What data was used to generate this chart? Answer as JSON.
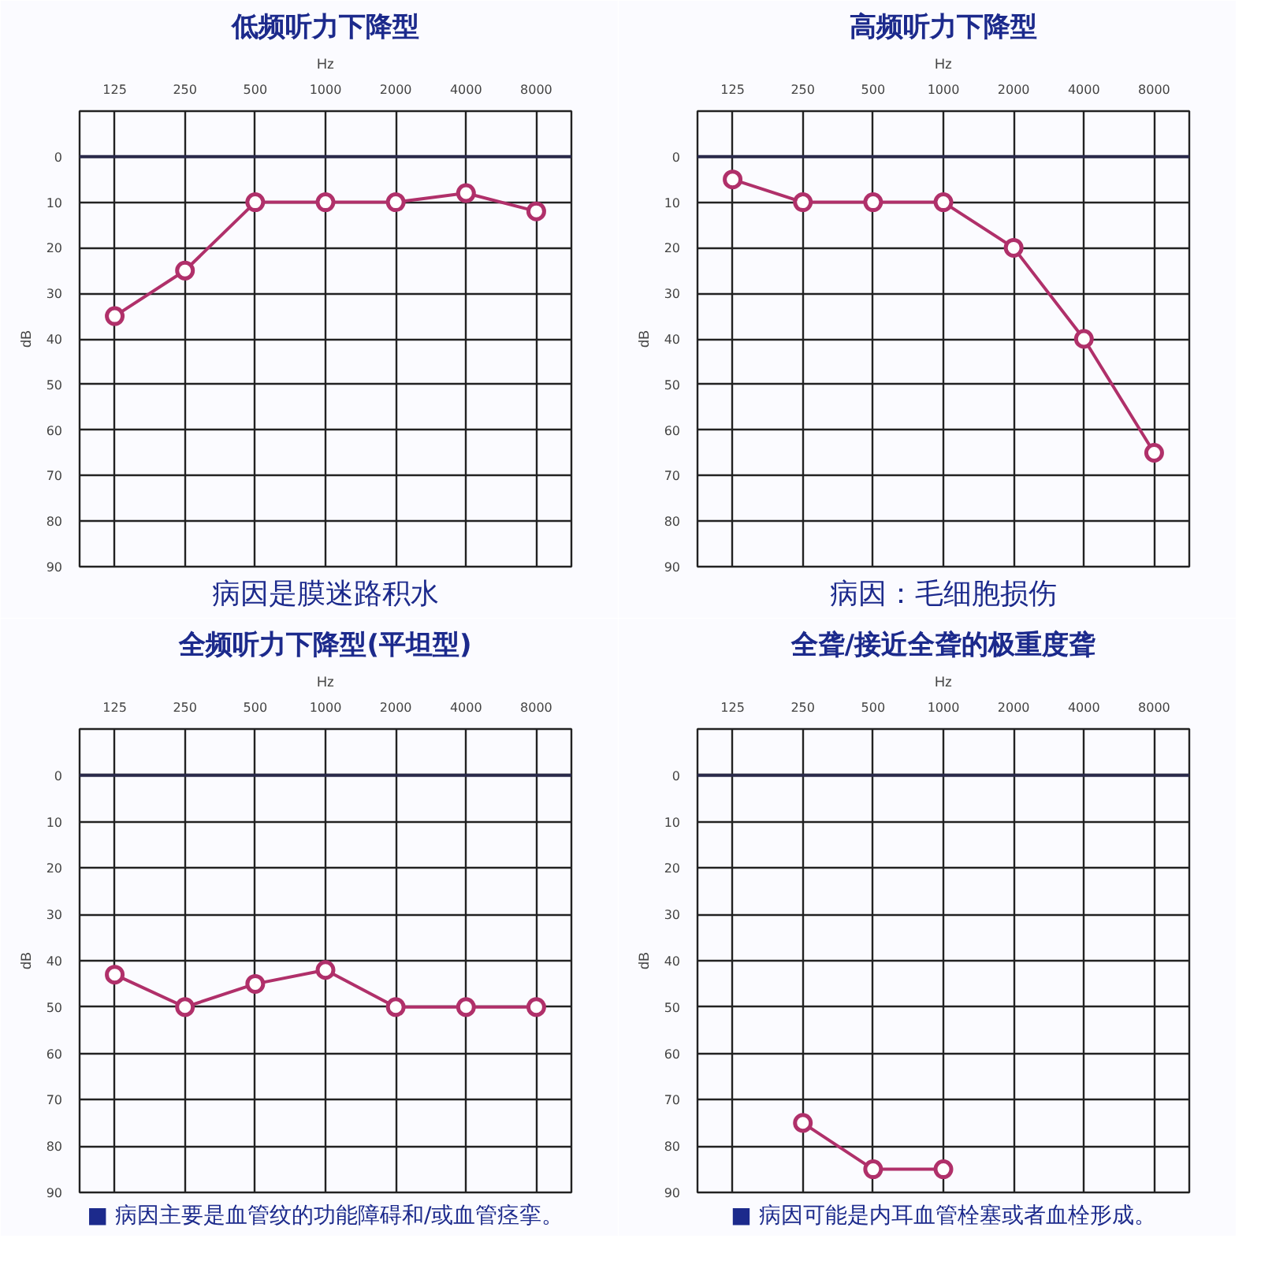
{
  "chart_data": [
    {
      "type": "line",
      "title": "低频听力下降型",
      "categories": [
        "125",
        "250",
        "500",
        "1000",
        "2000",
        "4000",
        "8000"
      ],
      "xlabel": "Hz",
      "ylabel": "dB",
      "ylim": [
        90,
        -10
      ],
      "yticks": [
        0,
        10,
        20,
        30,
        40,
        50,
        60,
        70,
        80,
        90
      ],
      "grid": true,
      "marker": "circle",
      "ref_lines": [
        {
          "axis": "y",
          "value": 0,
          "color": "#2a2a4a"
        }
      ],
      "series": [
        {
          "color": "#b0306a",
          "values": [
            35,
            25,
            10,
            10,
            10,
            8,
            12
          ]
        }
      ],
      "annotations": [
        "病因是膜迷路积水"
      ]
    },
    {
      "type": "line",
      "title": "高频听力下降型",
      "categories": [
        "125",
        "250",
        "500",
        "1000",
        "2000",
        "4000",
        "8000"
      ],
      "xlabel": "Hz",
      "ylabel": "dB",
      "ylim": [
        90,
        -10
      ],
      "yticks": [
        0,
        10,
        20,
        30,
        40,
        50,
        60,
        70,
        80,
        90
      ],
      "grid": true,
      "marker": "circle",
      "ref_lines": [
        {
          "axis": "y",
          "value": 0,
          "color": "#2a2a4a"
        }
      ],
      "series": [
        {
          "color": "#b0306a",
          "values": [
            5,
            10,
            10,
            10,
            20,
            40,
            65
          ]
        }
      ],
      "annotations": [
        "病因：毛细胞损伤"
      ]
    },
    {
      "type": "line",
      "title": "全频听力下降型(平坦型)",
      "categories": [
        "125",
        "250",
        "500",
        "1000",
        "2000",
        "4000",
        "8000"
      ],
      "xlabel": "Hz",
      "ylabel": "dB",
      "ylim": [
        90,
        -10
      ],
      "yticks": [
        0,
        10,
        20,
        30,
        40,
        50,
        60,
        70,
        80,
        90
      ],
      "grid": true,
      "marker": "circle",
      "ref_lines": [
        {
          "axis": "y",
          "value": 0,
          "color": "#2a2a4a"
        }
      ],
      "series": [
        {
          "color": "#b0306a",
          "values": [
            43,
            50,
            45,
            42,
            50,
            50,
            50
          ]
        }
      ],
      "annotations": [
        "■ 病因主要是血管纹的功能障碍和/或血管痉挛。"
      ]
    },
    {
      "type": "line",
      "title": "全聋/接近全聋的极重度聋",
      "categories": [
        "125",
        "250",
        "500",
        "1000",
        "2000",
        "4000",
        "8000"
      ],
      "xlabel": "Hz",
      "ylabel": "dB",
      "ylim": [
        90,
        -10
      ],
      "yticks": [
        0,
        10,
        20,
        30,
        40,
        50,
        60,
        70,
        80,
        90
      ],
      "grid": true,
      "marker": "circle",
      "ref_lines": [
        {
          "axis": "y",
          "value": 0,
          "color": "#2a2a4a"
        }
      ],
      "series": [
        {
          "color": "#b0306a",
          "values": [
            null,
            75,
            85,
            85,
            null,
            null,
            null
          ]
        }
      ],
      "annotations": [
        "■ 病因可能是内耳血管栓塞或者血栓形成。"
      ]
    }
  ]
}
